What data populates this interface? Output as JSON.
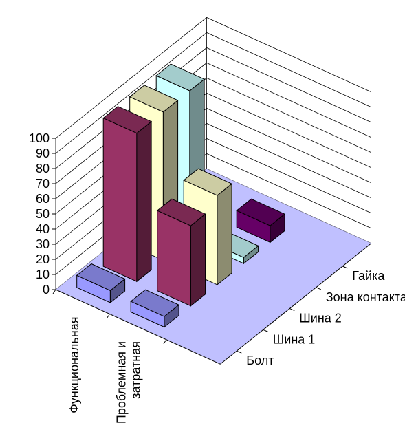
{
  "chart_data": {
    "type": "bar",
    "subtype": "3d-column",
    "categories": [
      "Функциональная",
      "Проблемная и затратная"
    ],
    "series": [
      {
        "name": "Болт",
        "values": [
          8,
          7
        ]
      },
      {
        "name": "Шина 1",
        "values": [
          98,
          53
        ]
      },
      {
        "name": "Шина 2",
        "values": [
          98,
          59
        ]
      },
      {
        "name": "Зона контакта",
        "values": [
          98,
          4
        ]
      },
      {
        "name": "Гайка",
        "values": [
          9,
          11
        ]
      }
    ],
    "ylim": [
      0,
      100
    ],
    "yticks": [
      "0",
      "10",
      "20",
      "30",
      "40",
      "50",
      "60",
      "70",
      "80",
      "90",
      "100"
    ],
    "colors": {
      "Болт": "#9999ff",
      "Шина 1": "#993366",
      "Шина 2": "#ffffcc",
      "Зона контакта": "#ccffff",
      "Гайка": "#660066",
      "floor": "#c0c0ff",
      "grid": "#000000"
    },
    "title": "",
    "xlabel": "",
    "ylabel": "",
    "legend": "none",
    "grid": true
  }
}
